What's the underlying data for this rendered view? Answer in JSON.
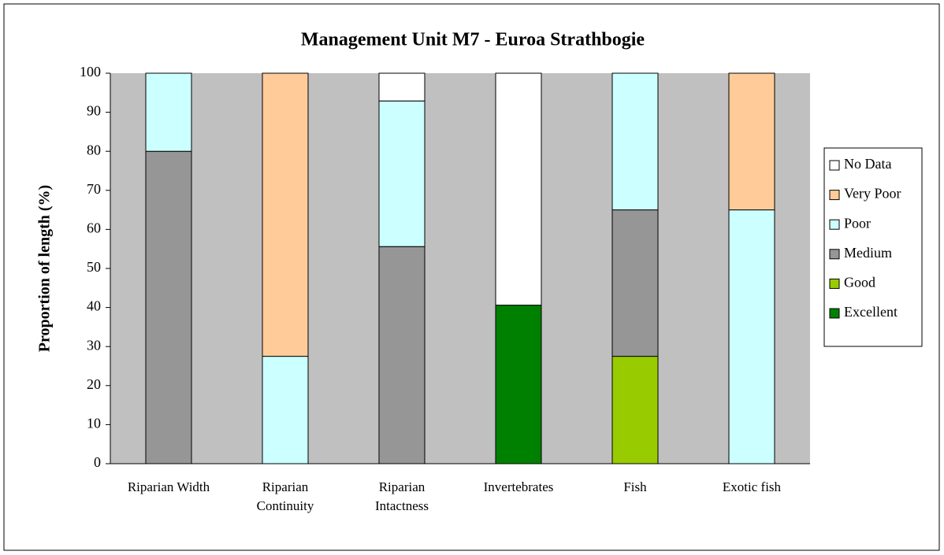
{
  "chart_data": {
    "type": "stacked_bar",
    "title": "Management Unit M7 - Euroa Strathbogie",
    "ylabel": "Proportion of length (%)",
    "categories": [
      "Riparian Width",
      "Riparian\nContinuity",
      "Riparian\nIntactness",
      "Invertebrates",
      "Fish",
      "Exotic fish"
    ],
    "series": [
      {
        "name": "Excellent",
        "color": "#008000",
        "values": [
          null,
          null,
          null,
          40.6,
          null,
          null
        ]
      },
      {
        "name": "Good",
        "color": "#99cc00",
        "values": [
          null,
          null,
          null,
          null,
          27.5,
          null
        ]
      },
      {
        "name": "Medium",
        "color": "#969696",
        "values": [
          80,
          null,
          55.6,
          null,
          37.5,
          null
        ]
      },
      {
        "name": "Poor",
        "color": "#ccffff",
        "values": [
          20,
          27.5,
          37.3,
          null,
          35,
          65
        ]
      },
      {
        "name": "Very Poor",
        "color": "#ffcc99",
        "values": [
          null,
          72.5,
          null,
          null,
          null,
          35
        ]
      },
      {
        "name": "No Data",
        "color": "#ffffff",
        "values": [
          null,
          null,
          7.1,
          59.4,
          null,
          null
        ]
      }
    ],
    "ylim": [
      0,
      100
    ],
    "yticks": [
      0,
      10,
      20,
      30,
      40,
      50,
      60,
      70,
      80,
      90,
      100
    ],
    "plot_background": "#c0c0c0",
    "legend": "right"
  }
}
